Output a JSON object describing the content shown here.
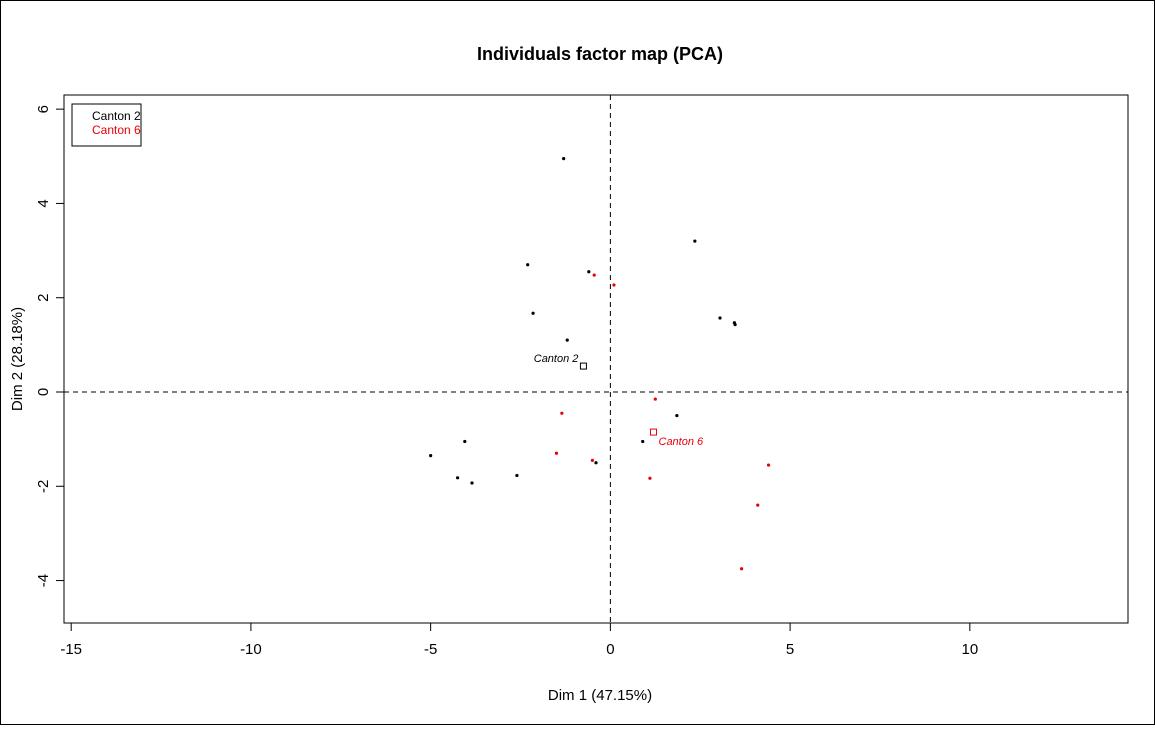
{
  "chart_data": {
    "type": "scatter",
    "title": "Individuals factor map (PCA)",
    "xlabel": "Dim 1 (47.15%)",
    "ylabel": "Dim 2 (28.18%)",
    "xlim": [
      -15.2,
      14.4
    ],
    "ylim": [
      -4.9,
      6.3
    ],
    "x_ticks": [
      -15,
      -10,
      -5,
      0,
      5,
      10
    ],
    "x_tick_labels": [
      "-15",
      "-10",
      "-5",
      "0",
      "5",
      "10"
    ],
    "y_ticks": [
      -4,
      -2,
      0,
      2,
      4,
      6
    ],
    "y_tick_labels": [
      "-4",
      "-2",
      "0",
      "2",
      "4",
      "6"
    ],
    "reference_lines": {
      "x": 0,
      "y": 0,
      "style": "dashed"
    },
    "grid": false,
    "legend": {
      "placement": "top-left",
      "entries": [
        {
          "label": "Canton 2",
          "color": "#000000"
        },
        {
          "label": "Canton 6",
          "color": "#e8000b"
        }
      ]
    },
    "series": [
      {
        "name": "Canton 2",
        "color": "#000000",
        "points": [
          [
            -1.3,
            4.95
          ],
          [
            2.35,
            3.2
          ],
          [
            -2.3,
            2.7
          ],
          [
            -0.6,
            2.55
          ],
          [
            -2.15,
            1.67
          ],
          [
            -1.2,
            1.1
          ],
          [
            3.05,
            1.57
          ],
          [
            3.45,
            1.47
          ],
          [
            3.47,
            1.43
          ],
          [
            1.85,
            -0.5
          ],
          [
            0.9,
            -1.05
          ],
          [
            -4.05,
            -1.05
          ],
          [
            -5.0,
            -1.35
          ],
          [
            -0.4,
            -1.5
          ],
          [
            -2.6,
            -1.77
          ],
          [
            -4.25,
            -1.82
          ],
          [
            -3.85,
            -1.93
          ]
        ],
        "centroid": {
          "x": -0.75,
          "y": 0.55,
          "label": "Canton 2"
        }
      },
      {
        "name": "Canton 6",
        "color": "#e8000b",
        "points": [
          [
            -0.45,
            2.48
          ],
          [
            0.1,
            2.27
          ],
          [
            1.25,
            -0.15
          ],
          [
            -1.35,
            -0.45
          ],
          [
            -1.5,
            -1.3
          ],
          [
            -0.5,
            -1.45
          ],
          [
            4.4,
            -1.55
          ],
          [
            1.1,
            -1.83
          ],
          [
            4.1,
            -2.4
          ],
          [
            3.65,
            -3.75
          ]
        ],
        "centroid": {
          "x": 1.2,
          "y": -0.85,
          "label": "Canton 6"
        }
      }
    ]
  }
}
